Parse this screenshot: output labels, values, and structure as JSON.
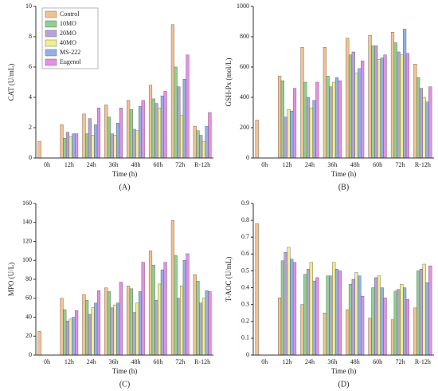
{
  "chart_data": [
    {
      "type": "bar",
      "panel": "(A)",
      "xlabel": "Time (h)",
      "ylabel": "CAT (U/mL)",
      "ylim": [
        0,
        10
      ],
      "yticks": [
        0,
        2,
        4,
        6,
        8,
        10
      ],
      "legend": "upper left",
      "categories": [
        "0h",
        "12h",
        "24h",
        "36h",
        "48h",
        "60h",
        "72h",
        "R-12h"
      ],
      "series": [
        {
          "name": "Control",
          "color": "#f5c28f",
          "values": [
            1.1,
            2.2,
            2.9,
            3.5,
            3.8,
            4.8,
            8.8,
            2.1
          ]
        },
        {
          "name": "10MO",
          "color": "#8fd18f",
          "values": [
            null,
            1.3,
            1.6,
            2.7,
            3.2,
            3.9,
            6.0,
            1.8
          ]
        },
        {
          "name": "20MO",
          "color": "#b9a3d6",
          "values": [
            null,
            1.7,
            2.6,
            1.6,
            1.9,
            3.6,
            4.7,
            1.5
          ]
        },
        {
          "name": "40MO",
          "color": "#f2ee8c",
          "values": [
            null,
            1.4,
            1.5,
            1.5,
            1.8,
            3.3,
            2.8,
            1.1
          ]
        },
        {
          "name": "MS-222",
          "color": "#8fb3e6",
          "values": [
            null,
            1.6,
            2.2,
            2.3,
            3.4,
            4.1,
            5.2,
            2.1
          ]
        },
        {
          "name": "Eugenol",
          "color": "#e68fe6",
          "values": [
            null,
            1.6,
            3.3,
            3.3,
            3.8,
            4.4,
            6.8,
            3.0
          ]
        }
      ]
    },
    {
      "type": "bar",
      "panel": "(B)",
      "xlabel": "Time (h)",
      "ylabel": "GSH-Px (mol/L)",
      "ylim": [
        0,
        1000
      ],
      "yticks": [
        0,
        200,
        400,
        600,
        800,
        1000
      ],
      "categories": [
        "0h",
        "12h",
        "24h",
        "36h",
        "48h",
        "60h",
        "72h",
        "R-12h"
      ],
      "series": [
        {
          "color": "#f5c28f",
          "values": [
            250,
            540,
            730,
            730,
            790,
            810,
            830,
            620
          ]
        },
        {
          "color": "#8fd18f",
          "values": [
            null,
            510,
            500,
            540,
            680,
            740,
            760,
            530
          ]
        },
        {
          "color": "#b9a3d6",
          "values": [
            null,
            270,
            400,
            470,
            700,
            740,
            700,
            460
          ]
        },
        {
          "color": "#f2ee8c",
          "values": [
            null,
            320,
            330,
            500,
            560,
            650,
            680,
            400
          ]
        },
        {
          "color": "#8fb3e6",
          "values": [
            null,
            310,
            380,
            530,
            590,
            660,
            850,
            370
          ]
        },
        {
          "color": "#e68fe6",
          "values": [
            null,
            460,
            500,
            510,
            640,
            680,
            690,
            470
          ]
        }
      ]
    },
    {
      "type": "bar",
      "panel": "(C)",
      "xlabel": "Time (h)",
      "ylabel": "MPO (U/L)",
      "ylim": [
        0,
        160
      ],
      "yticks": [
        0,
        20,
        40,
        60,
        80,
        100,
        120,
        140,
        160
      ],
      "categories": [
        "0h",
        "12h",
        "24h",
        "36h",
        "48h",
        "60h",
        "72h",
        "R-12h"
      ],
      "series": [
        {
          "color": "#f5c28f",
          "values": [
            25,
            60,
            64,
            71,
            73,
            110,
            142,
            85
          ]
        },
        {
          "color": "#8fd18f",
          "values": [
            null,
            48,
            58,
            67,
            70,
            95,
            105,
            78
          ]
        },
        {
          "color": "#b9a3d6",
          "values": [
            null,
            36,
            43,
            50,
            45,
            58,
            60,
            55
          ]
        },
        {
          "color": "#f2ee8c",
          "values": [
            null,
            38,
            50,
            53,
            55,
            75,
            73,
            60
          ]
        },
        {
          "color": "#8fb3e6",
          "values": [
            null,
            40,
            55,
            55,
            67,
            90,
            100,
            68
          ]
        },
        {
          "color": "#e68fe6",
          "values": [
            null,
            47,
            68,
            77,
            98,
            98,
            107,
            67
          ]
        }
      ]
    },
    {
      "type": "bar",
      "panel": "(D)",
      "xlabel": "Time (h)",
      "ylabel": "T-AOC (U/mL)",
      "ylim": [
        0,
        0.9
      ],
      "yticks": [
        0,
        0.1,
        0.2,
        0.3,
        0.4,
        0.5,
        0.6,
        0.7,
        0.8,
        0.9
      ],
      "categories": [
        "0h",
        "12h",
        "24h",
        "36h",
        "48h",
        "60h",
        "72h",
        "R-12h"
      ],
      "series": [
        {
          "color": "#f5c28f",
          "values": [
            0.78,
            0.34,
            0.3,
            0.25,
            0.27,
            0.22,
            0.21,
            0.28
          ]
        },
        {
          "color": "#8fd18f",
          "values": [
            null,
            0.56,
            0.48,
            0.47,
            0.42,
            0.4,
            0.38,
            0.5
          ]
        },
        {
          "color": "#b9a3d6",
          "values": [
            null,
            0.61,
            0.51,
            0.47,
            0.45,
            0.46,
            0.39,
            0.51
          ]
        },
        {
          "color": "#f2ee8c",
          "values": [
            null,
            0.64,
            0.55,
            0.55,
            0.49,
            0.47,
            0.42,
            0.54
          ]
        },
        {
          "color": "#8fb3e6",
          "values": [
            null,
            0.57,
            0.44,
            0.51,
            0.47,
            0.4,
            0.4,
            0.43
          ]
        },
        {
          "color": "#e68fe6",
          "values": [
            null,
            0.55,
            0.46,
            0.5,
            0.35,
            0.34,
            0.33,
            0.53
          ]
        }
      ]
    }
  ]
}
